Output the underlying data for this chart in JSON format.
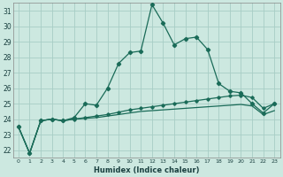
{
  "xlabel": "Humidex (Indice chaleur)",
  "ylabel": "",
  "background_color": "#cce8e0",
  "grid_color": "#a8cdc5",
  "line_color": "#1a6b58",
  "xlim": [
    -0.5,
    23.5
  ],
  "ylim": [
    21.5,
    31.5
  ],
  "yticks": [
    22,
    23,
    24,
    25,
    26,
    27,
    28,
    29,
    30,
    31
  ],
  "xticks": [
    0,
    1,
    2,
    3,
    4,
    5,
    6,
    7,
    8,
    9,
    10,
    11,
    12,
    13,
    14,
    15,
    16,
    17,
    18,
    19,
    20,
    21,
    22,
    23
  ],
  "hours": [
    0,
    1,
    2,
    3,
    4,
    5,
    6,
    7,
    8,
    9,
    10,
    11,
    12,
    13,
    14,
    15,
    16,
    17,
    18,
    19,
    20,
    21,
    22,
    23
  ],
  "curve_main": [
    23.5,
    21.8,
    23.9,
    24.0,
    23.9,
    24.1,
    25.0,
    24.9,
    26.0,
    27.6,
    28.3,
    28.4,
    31.4,
    30.2,
    28.8,
    29.2,
    29.3,
    28.5,
    26.3,
    25.8,
    25.7,
    25.0,
    24.4,
    25.0
  ],
  "curve_mid": [
    23.5,
    21.8,
    23.9,
    24.0,
    23.9,
    24.0,
    24.1,
    24.2,
    24.3,
    24.45,
    24.6,
    24.7,
    24.8,
    24.9,
    25.0,
    25.1,
    25.2,
    25.3,
    25.4,
    25.5,
    25.55,
    25.4,
    24.7,
    25.0
  ],
  "curve_low": [
    23.5,
    21.8,
    23.9,
    24.0,
    23.9,
    24.0,
    24.05,
    24.1,
    24.2,
    24.3,
    24.4,
    24.5,
    24.55,
    24.6,
    24.65,
    24.7,
    24.75,
    24.8,
    24.85,
    24.9,
    24.95,
    24.85,
    24.3,
    24.55
  ]
}
